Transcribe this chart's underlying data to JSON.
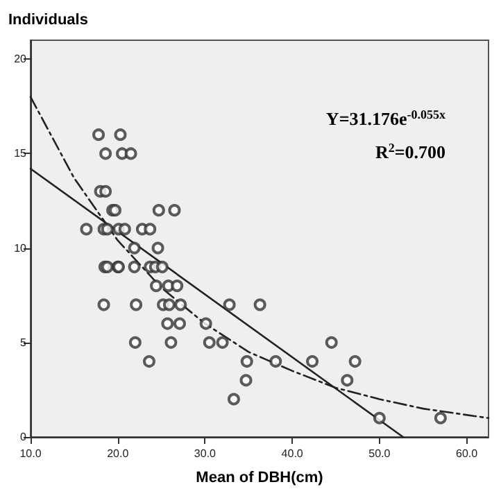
{
  "chart_data": {
    "type": "scatter",
    "xlabel": "Mean of DBH(cm)",
    "ylabel": "Individuals",
    "xlim": [
      10,
      62.5
    ],
    "ylim": [
      0,
      21
    ],
    "xticks": [
      {
        "value": 10,
        "label": "10.0"
      },
      {
        "value": 20,
        "label": "20.0"
      },
      {
        "value": 30,
        "label": "30.0"
      },
      {
        "value": 40,
        "label": "40.0"
      },
      {
        "value": 50,
        "label": "50.0"
      },
      {
        "value": 60,
        "label": "60.0"
      }
    ],
    "yticks": [
      0,
      5,
      10,
      15,
      20
    ],
    "grid": false,
    "marker": "circle",
    "annotations": [
      "Y=31.176e$^{-0.055x}$",
      "R$^{2}$=0.700"
    ],
    "series": [
      {
        "color": "#333333",
        "x": [
          17.8,
          20.3,
          18.6,
          20.5,
          21.5,
          18.0,
          18.6,
          19.4,
          19.7,
          24.7,
          26.5,
          16.4,
          18.4,
          18.8,
          20.1,
          20.8,
          22.8,
          23.7,
          21.9,
          24.6,
          18.5,
          18.8,
          20.0,
          20.1,
          21.9,
          23.7,
          24.3,
          25.1,
          24.4,
          25.8,
          26.8,
          18.4,
          22.1,
          25.2,
          25.9,
          27.2,
          32.8,
          36.3,
          25.7,
          27.1,
          30.1,
          22.0,
          26.1,
          30.5,
          32.0,
          44.5,
          23.6,
          34.8,
          38.1,
          42.3,
          47.2,
          34.7,
          46.3,
          33.3,
          50.0,
          57.0
        ],
        "values": [
          16,
          16,
          15,
          15,
          15,
          13,
          13,
          12,
          12,
          12,
          12,
          11,
          11,
          11,
          11,
          11,
          11,
          11,
          10,
          10,
          9,
          9,
          9,
          9,
          9,
          9,
          9,
          9,
          8,
          8,
          8,
          7,
          7,
          7,
          7,
          7,
          7,
          7,
          6,
          6,
          6,
          5,
          5,
          5,
          5,
          5,
          4,
          4,
          4,
          4,
          4,
          3,
          3,
          2,
          1,
          1
        ]
      },
      {
        "type": "line",
        "color": "#222222",
        "line_style": "solid",
        "marker": "none",
        "x": [
          10,
          52.7
        ],
        "values": [
          14.2,
          0
        ]
      },
      {
        "type": "line",
        "color": "#222222",
        "line_style": "dashed",
        "marker": "none",
        "x": [
          10,
          15,
          20,
          25,
          30,
          35,
          40,
          45,
          50,
          55,
          62.5
        ],
        "values": [
          18.0,
          13.7,
          10.4,
          7.9,
          6.0,
          4.5,
          3.5,
          2.6,
          2.0,
          1.5,
          1.0
        ]
      }
    ]
  }
}
